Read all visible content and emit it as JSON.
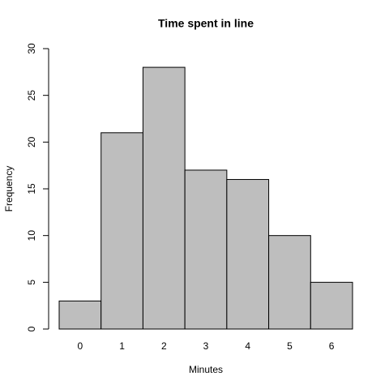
{
  "chart_data": {
    "type": "bar",
    "title": "Time spent in line",
    "x_label": "Minutes",
    "y_label": "Frequency",
    "categories": [
      "0",
      "1",
      "2",
      "3",
      "4",
      "5",
      "6"
    ],
    "values": [
      3,
      21,
      28,
      17,
      16,
      10,
      5
    ],
    "color": "#bebebe",
    "ylim": [
      0,
      30
    ],
    "yticks": [
      0,
      5,
      10,
      15,
      20,
      25,
      30
    ],
    "grid": false
  }
}
